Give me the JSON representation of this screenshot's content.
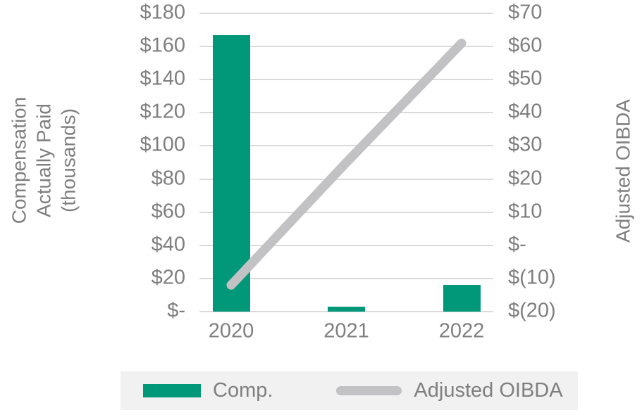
{
  "chart_data": {
    "type": "combo",
    "categories": [
      "2020",
      "2021",
      "2022"
    ],
    "series": [
      {
        "name": "Comp.",
        "type": "bar",
        "axis": "left",
        "color": "#009878",
        "values": [
          167,
          3,
          16
        ]
      },
      {
        "name": "Adjusted OIBDA",
        "type": "line",
        "axis": "right",
        "color": "#C2C2C4",
        "values": [
          -12,
          25,
          61
        ]
      }
    ],
    "left_axis": {
      "title": "Compensation\nActually Paid\n(thousands)",
      "ticks": [
        "$180",
        "$160",
        "$140",
        "$120",
        "$100",
        "$80",
        "$60",
        "$40",
        "$20",
        "$-"
      ],
      "range": [
        0,
        180
      ],
      "tick_step": 20
    },
    "right_axis": {
      "title": "Adjusted OIBDA",
      "ticks": [
        "$70",
        "$60",
        "$50",
        "$40",
        "$30",
        "$20",
        "$10",
        "$-",
        "$(10)",
        "$(20)"
      ],
      "range": [
        -20,
        70
      ],
      "tick_step": 10
    },
    "grid": "horizontal",
    "legend": {
      "position": "bottom",
      "background": "#F1F1F1",
      "items": [
        {
          "label": "Comp.",
          "swatch": "bar",
          "color": "#009878"
        },
        {
          "label": "Adjusted OIBDA",
          "swatch": "line",
          "color": "#C2C2C4"
        }
      ]
    },
    "colors": {
      "gridline": "#DADADA",
      "text": "#7F7F7F",
      "background": "#FFFFFF"
    }
  }
}
